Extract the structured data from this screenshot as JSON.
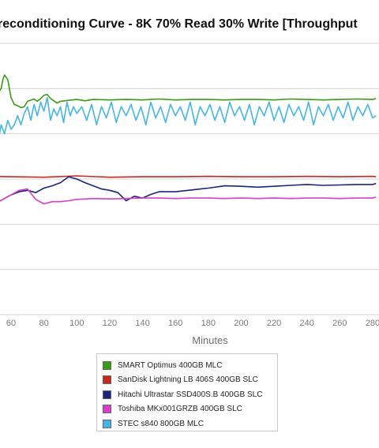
{
  "chart_data": {
    "type": "line",
    "title": "reconditioning Curve - 8K 70% Read 30% Write [Throughput",
    "xlabel": "Minutes",
    "ylabel": "",
    "x_ticks": [
      60,
      80,
      100,
      120,
      140,
      160,
      180,
      200,
      220,
      240,
      260,
      280
    ],
    "xlim": [
      50,
      282
    ],
    "ylim": [
      0,
      6
    ],
    "grid": true,
    "legend_position": "bottom",
    "series": [
      {
        "name": "SMART Optimus 400GB MLC",
        "color": "#3a9a14",
        "x": [
          50,
          52,
          54,
          55,
          56,
          58,
          60,
          62,
          64,
          66,
          68,
          70,
          74,
          76,
          78,
          80,
          82,
          84,
          88,
          90,
          95,
          100,
          105,
          110,
          120,
          130,
          140,
          150,
          160,
          170,
          180,
          190,
          200,
          210,
          220,
          230,
          240,
          250,
          260,
          270,
          280,
          282
        ],
        "y": [
          4.8,
          4.9,
          5.0,
          5.2,
          5.3,
          5.2,
          4.8,
          4.65,
          4.62,
          4.58,
          4.6,
          4.72,
          4.77,
          4.72,
          4.78,
          4.85,
          4.87,
          4.78,
          4.68,
          4.72,
          4.74,
          4.76,
          4.73,
          4.76,
          4.75,
          4.76,
          4.75,
          4.77,
          4.75,
          4.76,
          4.76,
          4.75,
          4.76,
          4.76,
          4.75,
          4.77,
          4.76,
          4.75,
          4.76,
          4.77,
          4.76,
          4.78
        ]
      },
      {
        "name": "SanDisk Lightning LB 406S 400GB SLC",
        "color": "#c8281e",
        "x": [
          50,
          60,
          80,
          100,
          120,
          140,
          160,
          180,
          200,
          220,
          240,
          260,
          280,
          282
        ],
        "y": [
          3.06,
          3.05,
          3.04,
          3.07,
          3.04,
          3.05,
          3.05,
          3.06,
          3.05,
          3.05,
          3.06,
          3.05,
          3.06,
          3.05
        ]
      },
      {
        "name": "Hitachi Ultrastar SSD400S.B 400GB SLC",
        "color": "#1a237e",
        "x": [
          50,
          55,
          60,
          65,
          70,
          75,
          80,
          85,
          90,
          95,
          100,
          105,
          110,
          115,
          120,
          125,
          130,
          135,
          140,
          145,
          150,
          160,
          170,
          180,
          190,
          200,
          210,
          220,
          230,
          240,
          250,
          260,
          270,
          280,
          282
        ],
        "y": [
          2.45,
          2.55,
          2.65,
          2.72,
          2.75,
          2.7,
          2.8,
          2.85,
          2.92,
          3.05,
          3.0,
          2.92,
          2.85,
          2.78,
          2.75,
          2.7,
          2.52,
          2.62,
          2.58,
          2.66,
          2.72,
          2.72,
          2.76,
          2.8,
          2.85,
          2.84,
          2.82,
          2.84,
          2.86,
          2.88,
          2.86,
          2.87,
          2.88,
          2.88,
          2.9
        ]
      },
      {
        "name": "Toshiba MKx001GRZB 400GB SLC",
        "color": "#d93ec9",
        "x": [
          50,
          55,
          60,
          65,
          70,
          75,
          80,
          85,
          90,
          95,
          100,
          110,
          120,
          130,
          140,
          150,
          160,
          170,
          180,
          190,
          200,
          210,
          220,
          230,
          240,
          250,
          260,
          270,
          280,
          282
        ],
        "y": [
          2.45,
          2.55,
          2.65,
          2.75,
          2.78,
          2.55,
          2.45,
          2.5,
          2.5,
          2.52,
          2.55,
          2.57,
          2.56,
          2.57,
          2.58,
          2.58,
          2.57,
          2.58,
          2.58,
          2.57,
          2.58,
          2.57,
          2.58,
          2.57,
          2.58,
          2.58,
          2.57,
          2.58,
          2.58,
          2.6
        ]
      },
      {
        "name": "STEC s840 800GB MLC",
        "color": "#45b5e6",
        "x": [
          50,
          52,
          54,
          56,
          58,
          60,
          62,
          64,
          66,
          68,
          70,
          72,
          74,
          76,
          78,
          80,
          82,
          84,
          86,
          88,
          90,
          92,
          94,
          96,
          98,
          100,
          103,
          106,
          109,
          112,
          115,
          118,
          121,
          124,
          127,
          130,
          133,
          136,
          139,
          142,
          145,
          148,
          151,
          154,
          157,
          160,
          163,
          166,
          169,
          172,
          175,
          178,
          181,
          184,
          187,
          190,
          193,
          196,
          199,
          202,
          205,
          208,
          211,
          214,
          217,
          220,
          223,
          226,
          229,
          232,
          235,
          238,
          241,
          244,
          247,
          250,
          253,
          256,
          259,
          262,
          265,
          268,
          271,
          274,
          277,
          280,
          282
        ],
        "y": [
          3.9,
          3.8,
          4.2,
          4.0,
          4.3,
          4.1,
          4.2,
          4.4,
          4.2,
          4.45,
          4.6,
          4.3,
          4.65,
          4.4,
          4.7,
          4.5,
          4.8,
          4.3,
          4.55,
          4.4,
          4.6,
          4.25,
          4.7,
          4.4,
          4.6,
          4.45,
          4.6,
          4.3,
          4.65,
          4.2,
          4.6,
          4.35,
          4.7,
          4.25,
          4.6,
          4.4,
          4.65,
          4.3,
          4.6,
          4.2,
          4.7,
          4.35,
          4.6,
          4.25,
          4.65,
          4.4,
          4.6,
          4.3,
          4.7,
          4.2,
          4.6,
          4.4,
          4.65,
          4.3,
          4.6,
          4.25,
          4.7,
          4.4,
          4.6,
          4.3,
          4.65,
          4.2,
          4.6,
          4.4,
          4.7,
          4.3,
          4.6,
          4.25,
          4.65,
          4.4,
          4.6,
          4.3,
          4.7,
          4.2,
          4.6,
          4.4,
          4.65,
          4.3,
          4.6,
          4.35,
          4.7,
          4.3,
          4.6,
          4.4,
          4.65,
          4.35,
          4.4
        ]
      }
    ]
  }
}
